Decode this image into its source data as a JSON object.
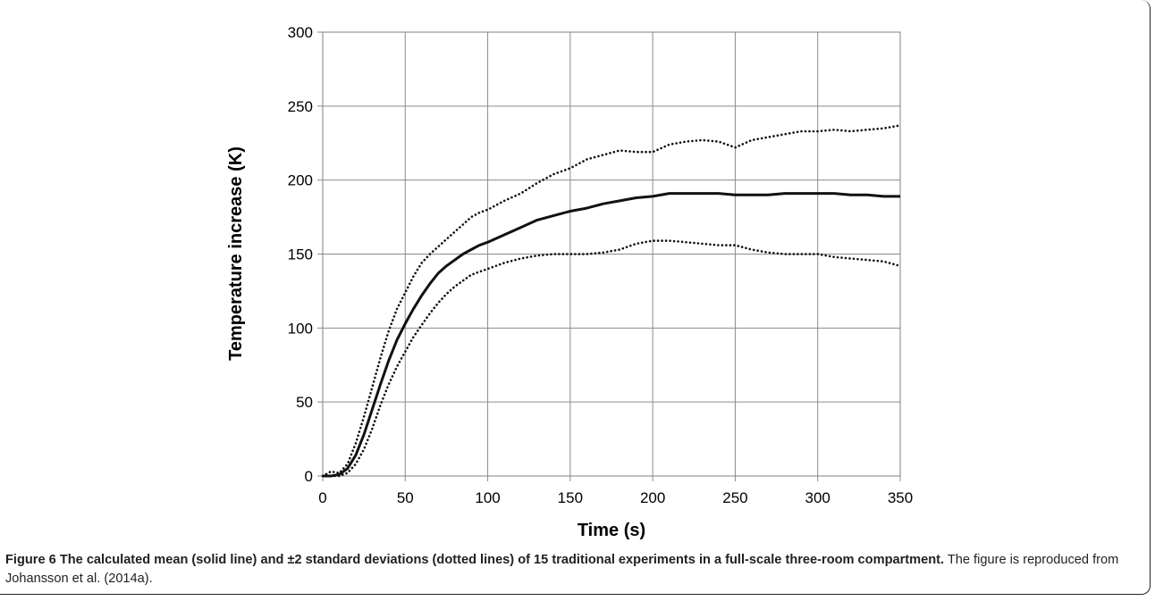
{
  "chart_data": {
    "type": "line",
    "xlabel": "Time (s)",
    "ylabel": "Temperature increase (K)",
    "xlim": [
      0,
      350
    ],
    "ylim": [
      0,
      300
    ],
    "x_ticks": [
      "0",
      "50",
      "100",
      "150",
      "200",
      "250",
      "300",
      "350"
    ],
    "y_ticks": [
      "0",
      "50",
      "100",
      "150",
      "200",
      "250",
      "300"
    ],
    "grid": true,
    "series": [
      {
        "style": "solid",
        "x": [
          0,
          5,
          10,
          15,
          20,
          25,
          30,
          35,
          40,
          45,
          50,
          55,
          60,
          65,
          70,
          75,
          80,
          85,
          90,
          95,
          100,
          110,
          120,
          130,
          140,
          150,
          160,
          170,
          180,
          190,
          200,
          210,
          220,
          230,
          240,
          250,
          260,
          270,
          280,
          290,
          300,
          310,
          320,
          330,
          340,
          350
        ],
        "y": [
          0,
          0,
          1,
          5,
          14,
          28,
          45,
          62,
          78,
          92,
          103,
          113,
          122,
          130,
          137,
          142,
          146,
          150,
          153,
          156,
          158,
          163,
          168,
          173,
          176,
          179,
          181,
          184,
          186,
          188,
          189,
          191,
          191,
          191,
          191,
          190,
          190,
          190,
          191,
          191,
          191,
          191,
          190,
          190,
          189,
          189
        ]
      },
      {
        "style": "dotted",
        "x": [
          0,
          5,
          10,
          15,
          20,
          25,
          30,
          35,
          40,
          45,
          50,
          55,
          60,
          65,
          70,
          75,
          80,
          85,
          90,
          95,
          100,
          110,
          120,
          130,
          140,
          150,
          160,
          170,
          180,
          190,
          200,
          210,
          220,
          230,
          240,
          250,
          260,
          270,
          280,
          290,
          300,
          310,
          320,
          330,
          340,
          350
        ],
        "y": [
          0,
          3,
          2,
          8,
          22,
          40,
          60,
          80,
          98,
          113,
          124,
          135,
          144,
          150,
          155,
          160,
          165,
          170,
          175,
          178,
          180,
          186,
          191,
          198,
          204,
          208,
          214,
          217,
          220,
          219,
          219,
          224,
          226,
          227,
          226,
          222,
          227,
          229,
          231,
          233,
          233,
          234,
          233,
          234,
          235,
          237
        ]
      },
      {
        "style": "dotted",
        "x": [
          0,
          5,
          10,
          15,
          20,
          25,
          30,
          35,
          40,
          45,
          50,
          55,
          60,
          65,
          70,
          75,
          80,
          85,
          90,
          95,
          100,
          110,
          120,
          130,
          140,
          150,
          160,
          170,
          180,
          190,
          200,
          210,
          220,
          230,
          240,
          250,
          260,
          270,
          280,
          290,
          300,
          310,
          320,
          330,
          340,
          350
        ],
        "y": [
          0,
          0,
          0,
          2,
          8,
          18,
          32,
          48,
          62,
          74,
          84,
          94,
          102,
          110,
          117,
          123,
          128,
          132,
          136,
          138,
          140,
          144,
          147,
          149,
          150,
          150,
          150,
          151,
          153,
          157,
          159,
          159,
          158,
          157,
          156,
          156,
          153,
          151,
          150,
          150,
          150,
          148,
          147,
          146,
          145,
          142
        ]
      }
    ]
  },
  "caption": {
    "label": "Figure 6 The calculated mean (solid line) and ±2 standard deviations (dotted lines) of 15 traditional experiments in a full-scale three-room compartment.",
    "text": " The figure is reproduced from Johansson et al. (2014a)."
  }
}
